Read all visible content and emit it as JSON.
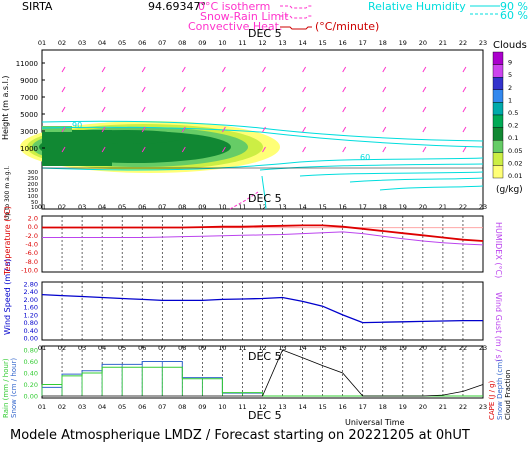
{
  "header": {
    "station": "SIRTA",
    "coords": "94.69347°",
    "legend_iso": "0°C isotherm",
    "legend_snowrain": "Snow-Rain Limit",
    "legend_conv": "Convective Heat.",
    "legend_conv_unit": "(°C/minute)",
    "legend_rh": "Relative Humidity",
    "rh_90": "90 %",
    "rh_60": "60 %"
  },
  "colors": {
    "isotherm": "#ff33cc",
    "rh": "#00dddd",
    "conv": "#cc0000",
    "temperature": "#dd0000",
    "humidex": "#bb44ee",
    "wind": "#0000cc",
    "rain": "#33cc33",
    "snow": "#3366cc",
    "cloud_fraction": "#000000"
  },
  "hours": [
    "01",
    "02",
    "03",
    "04",
    "05",
    "06",
    "07",
    "08",
    "09",
    "10",
    "11",
    "12",
    "13",
    "14",
    "15",
    "16",
    "17",
    "18",
    "19",
    "20",
    "21",
    "22",
    "23"
  ],
  "date_label": "DEC  5",
  "footer": "Modele Atmospherique LMDZ / Forecast starting on 20221205 at 0hUT",
  "universal_time": "Universal Time",
  "chart_data": [
    {
      "type": "heatmap",
      "title": "",
      "ylabel": "Height  (m a.s.l.)",
      "ylabel2": "Up to 300 m a.g.l.",
      "yticks_upper": [
        "11000",
        "9000",
        "7000",
        "5000",
        "3000",
        "1000"
      ],
      "yticks_lower": [
        "300",
        "250",
        "200",
        "150",
        "100",
        "50",
        "10"
      ],
      "legend_title": "Clouds",
      "legend_unit": "(g/kg)",
      "legend_levels": [
        "9",
        "5",
        "2",
        "1",
        "0.5",
        "0.2",
        "0.1",
        "0.05",
        "0.02",
        "0.01"
      ],
      "legend_colors": [
        "#aa00cc",
        "#cc44ee",
        "#3333cc",
        "#3388ee",
        "#00aaaa",
        "#00aa55",
        "#118833",
        "#66cc66",
        "#ccee44",
        "#ffff77"
      ],
      "rh_contour_labels": [
        "90",
        "60"
      ],
      "cloud_layer_m": [
        1800,
        4200
      ]
    },
    {
      "type": "line",
      "ylabel": "Temperature (°C)",
      "ylabel2": "HUMIDEX (°C)",
      "yticks": [
        "2.0",
        "0.0",
        "-2.0",
        "-4.0",
        "-6.0",
        "-8.0",
        "-10.0"
      ],
      "ylim": [
        -10,
        2
      ],
      "series": [
        {
          "name": "Temperature",
          "values": [
            -0.2,
            -0.2,
            -0.2,
            -0.2,
            -0.2,
            -0.2,
            -0.2,
            -0.2,
            -0.1,
            0.0,
            0.0,
            0.1,
            0.2,
            0.3,
            0.3,
            0.0,
            -0.5,
            -1.0,
            -1.5,
            -2.0,
            -2.5,
            -3.0,
            -3.3
          ]
        },
        {
          "name": "Humidex",
          "values": [
            -2.5,
            -2.5,
            -2.5,
            -2.5,
            -2.5,
            -2.5,
            -2.4,
            -2.3,
            -2.2,
            -2.1,
            -2.0,
            -1.9,
            -1.8,
            -1.6,
            -1.4,
            -1.2,
            -1.6,
            -2.2,
            -2.8,
            -3.3,
            -3.7,
            -4.0,
            -4.2
          ]
        }
      ]
    },
    {
      "type": "line",
      "ylabel": "Wind Speed (m / s)",
      "ylabel2": "Wind Gust (m / s)",
      "yticks": [
        "2.80",
        "2.40",
        "2.00",
        "1.60",
        "1.20",
        "0.80",
        "0.40",
        "0.00"
      ],
      "ylim": [
        0,
        2.8
      ],
      "series": [
        {
          "name": "Wind Speed",
          "values": [
            2.25,
            2.2,
            2.15,
            2.1,
            2.05,
            2.0,
            1.95,
            1.95,
            1.95,
            2.0,
            2.02,
            2.05,
            2.1,
            1.9,
            1.65,
            1.2,
            0.8,
            0.82,
            0.84,
            0.86,
            0.88,
            0.9,
            0.9
          ]
        }
      ]
    },
    {
      "type": "bar",
      "ylabel": "Rain (mm / hour)",
      "ylabel2": "Snow (cm / hour)",
      "ylabel3": "CAPE (J / g)",
      "ylabel4": "Snow Depth (cm)",
      "ylabel5": "Cloud Fraction",
      "yticks": [
        "0.80",
        "0.60",
        "0.40",
        "0.20",
        "0.00"
      ],
      "ylim": [
        0,
        0.8
      ],
      "rain": [
        0.2,
        0.35,
        0.4,
        0.5,
        0.5,
        0.5,
        0.5,
        0.3,
        0.3,
        0.06,
        0.06,
        0,
        0,
        0,
        0,
        0,
        0,
        0,
        0,
        0,
        0,
        0,
        0
      ],
      "snow": [
        0.15,
        0.38,
        0.44,
        0.55,
        0.55,
        0.6,
        0.6,
        0.32,
        0.32,
        0.05,
        0.05,
        0,
        0,
        0,
        0,
        0,
        0,
        0,
        0,
        0,
        0,
        0,
        0
      ],
      "cloud_fraction": [
        0,
        0,
        0,
        0,
        0,
        0,
        0,
        0,
        0,
        0,
        0,
        0,
        1.0,
        0.83,
        0.66,
        0.5,
        0,
        0,
        0,
        0,
        0.02,
        0.1,
        0.25
      ]
    }
  ]
}
